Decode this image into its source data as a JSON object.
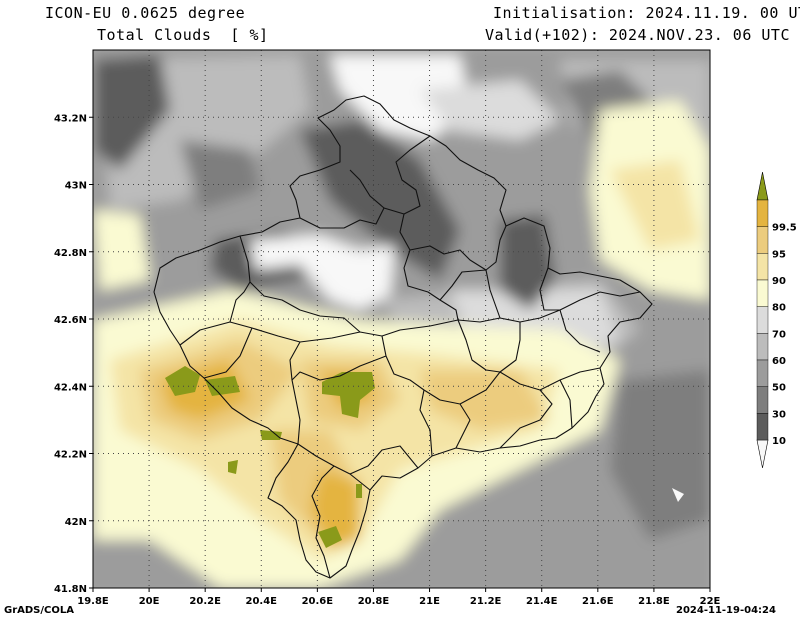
{
  "header": {
    "model": "ICON-EU 0.0625 degree",
    "variable": "Total Clouds  [ %]",
    "init": "Initialisation: 2024.11.19. 00 UTC",
    "valid": "Valid(+102): 2024.NOV.23. 06 UTC"
  },
  "footer": {
    "credit": "GrADS/COLA",
    "timestamp": "2024-11-19-04:24"
  },
  "axes": {
    "lon_labels": [
      "19.8E",
      "20E",
      "20.2E",
      "20.4E",
      "20.6E",
      "20.8E",
      "21E",
      "21.2E",
      "21.4E",
      "21.6E",
      "21.8E",
      "22E"
    ],
    "lon_values": [
      19.8,
      20.0,
      20.2,
      20.4,
      20.6,
      20.8,
      21.0,
      21.2,
      21.4,
      21.6,
      21.8,
      22.0
    ],
    "lat_labels": [
      "41.8N",
      "42N",
      "42.2N",
      "42.4N",
      "42.6N",
      "42.8N",
      "43N",
      "43.2N"
    ],
    "lat_values": [
      41.8,
      42.0,
      42.2,
      42.4,
      42.6,
      42.8,
      43.0,
      43.2
    ],
    "lon_range": [
      19.8,
      22.0
    ],
    "lat_range": [
      41.8,
      43.4
    ]
  },
  "legend": {
    "labels": [
      "10",
      "30",
      "50",
      "60",
      "70",
      "80",
      "90",
      "95",
      "99.5"
    ],
    "colors": {
      "c0": "#f8f8f8",
      "c1": "#5c5c5c",
      "c2": "#7e7e7e",
      "c3": "#9c9c9c",
      "c4": "#bcbcbc",
      "c5": "#dcdcdc",
      "c6": "#fafad2",
      "c7": "#f4e4a6",
      "c8": "#eccc7e",
      "c9": "#e4b440",
      "c10": "#8a9a1a"
    }
  }
}
